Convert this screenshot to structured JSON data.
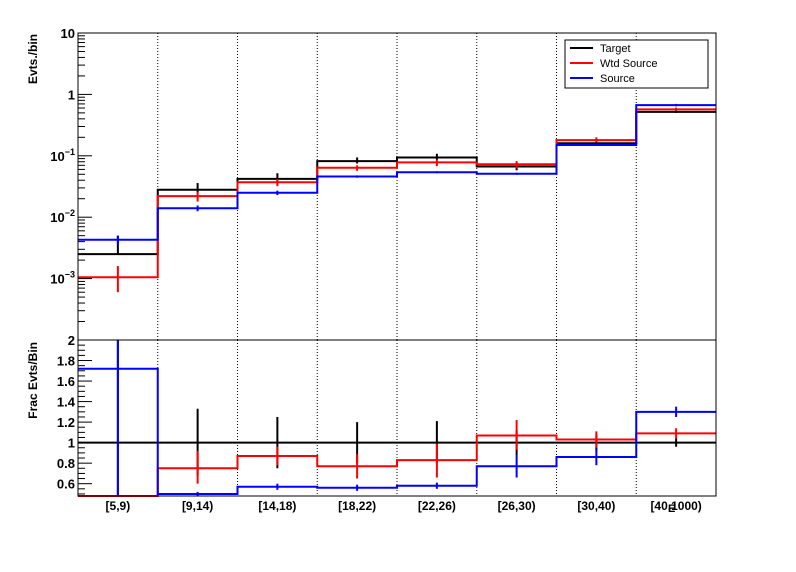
{
  "chart_data": [
    {
      "type": "histogram",
      "panel": "top",
      "ylabel": "Evts./bin",
      "yscale": "log",
      "ylim": [
        0.0001,
        10
      ],
      "categories": [
        "[5,9)",
        "[9,14)",
        "[14,18)",
        "[18,22)",
        "[22,26)",
        "[26,30)",
        "[30,40)",
        "[40,1000)"
      ],
      "y_tick_labels": [
        {
          "v": 10,
          "text": "10"
        },
        {
          "v": 1,
          "text": "1"
        },
        {
          "v": 0.1,
          "base": "10",
          "exp": "−1"
        },
        {
          "v": 0.01,
          "base": "10",
          "exp": "−2"
        },
        {
          "v": 0.001,
          "base": "10",
          "exp": "−3"
        }
      ],
      "legend": {
        "position": "top-right"
      },
      "grid": "vertical dotted",
      "series": [
        {
          "name": "Target",
          "color": "#000000",
          "values": [
            0.0025,
            0.028,
            0.042,
            0.082,
            0.094,
            0.067,
            0.16,
            0.52
          ],
          "err_low": [
            0.0025,
            0.025,
            0.038,
            0.075,
            0.086,
            0.058,
            0.145,
            0.5
          ],
          "err_high": [
            0.005,
            0.036,
            0.052,
            0.094,
            0.108,
            0.077,
            0.18,
            0.58
          ]
        },
        {
          "name": "Wtd Source",
          "color": "#ff0000",
          "values": [
            0.00105,
            0.022,
            0.037,
            0.064,
            0.078,
            0.073,
            0.18,
            0.57
          ],
          "err_low": [
            0.0006,
            0.018,
            0.032,
            0.057,
            0.068,
            0.062,
            0.165,
            0.54
          ],
          "err_high": [
            0.0016,
            0.026,
            0.042,
            0.07,
            0.087,
            0.082,
            0.2,
            0.61
          ]
        },
        {
          "name": "Source",
          "color": "#0000ff",
          "values": [
            0.0043,
            0.014,
            0.025,
            0.046,
            0.054,
            0.051,
            0.15,
            0.67
          ],
          "err_low": [
            0.0036,
            0.0125,
            0.023,
            0.044,
            0.052,
            0.049,
            0.145,
            0.64
          ],
          "err_high": [
            0.005,
            0.0155,
            0.027,
            0.048,
            0.056,
            0.053,
            0.155,
            0.7
          ]
        }
      ]
    },
    {
      "type": "histogram",
      "panel": "ratio",
      "ylabel": "Frac Evts/Bin",
      "xlabel": "E",
      "ylim": [
        0.48,
        2.0
      ],
      "y_ticks": [
        0.6,
        0.8,
        1,
        1.2,
        1.4,
        1.6,
        1.8,
        2
      ],
      "y_tick_labels": [
        "0.6",
        "0.8",
        "1",
        "1.2",
        "1.4",
        "1.6",
        "1.8",
        "2"
      ],
      "categories": [
        "[5,9)",
        "[9,14)",
        "[14,18)",
        "[18,22)",
        "[22,26)",
        "[26,30)",
        "[30,40)",
        "[40,1000)"
      ],
      "series": [
        {
          "name": "Target",
          "color": "#000000",
          "values": [
            1,
            1,
            1,
            1,
            1,
            1,
            1,
            1
          ],
          "err_low": [
            0.48,
            0.68,
            0.75,
            0.8,
            0.8,
            0.88,
            0.92,
            0.96
          ],
          "err_high": [
            2.0,
            1.33,
            1.25,
            1.2,
            1.21,
            1.12,
            1.08,
            1.04
          ]
        },
        {
          "name": "Wtd Source",
          "color": "#ff0000",
          "values": [
            0.48,
            0.75,
            0.87,
            0.77,
            0.83,
            1.07,
            1.03,
            1.09
          ],
          "err_low": [
            0.48,
            0.6,
            0.78,
            0.65,
            0.66,
            0.93,
            0.95,
            1.04
          ],
          "err_high": [
            0.48,
            0.92,
            0.96,
            0.89,
            0.99,
            1.22,
            1.11,
            1.14
          ]
        },
        {
          "name": "Source",
          "color": "#0000ff",
          "values": [
            1.72,
            0.5,
            0.57,
            0.56,
            0.58,
            0.77,
            0.86,
            1.3
          ],
          "err_low": [
            0.48,
            0.48,
            0.54,
            0.53,
            0.55,
            0.66,
            0.78,
            1.25
          ],
          "err_high": [
            2.0,
            0.52,
            0.6,
            0.59,
            0.61,
            0.88,
            0.94,
            1.35
          ]
        }
      ]
    }
  ]
}
